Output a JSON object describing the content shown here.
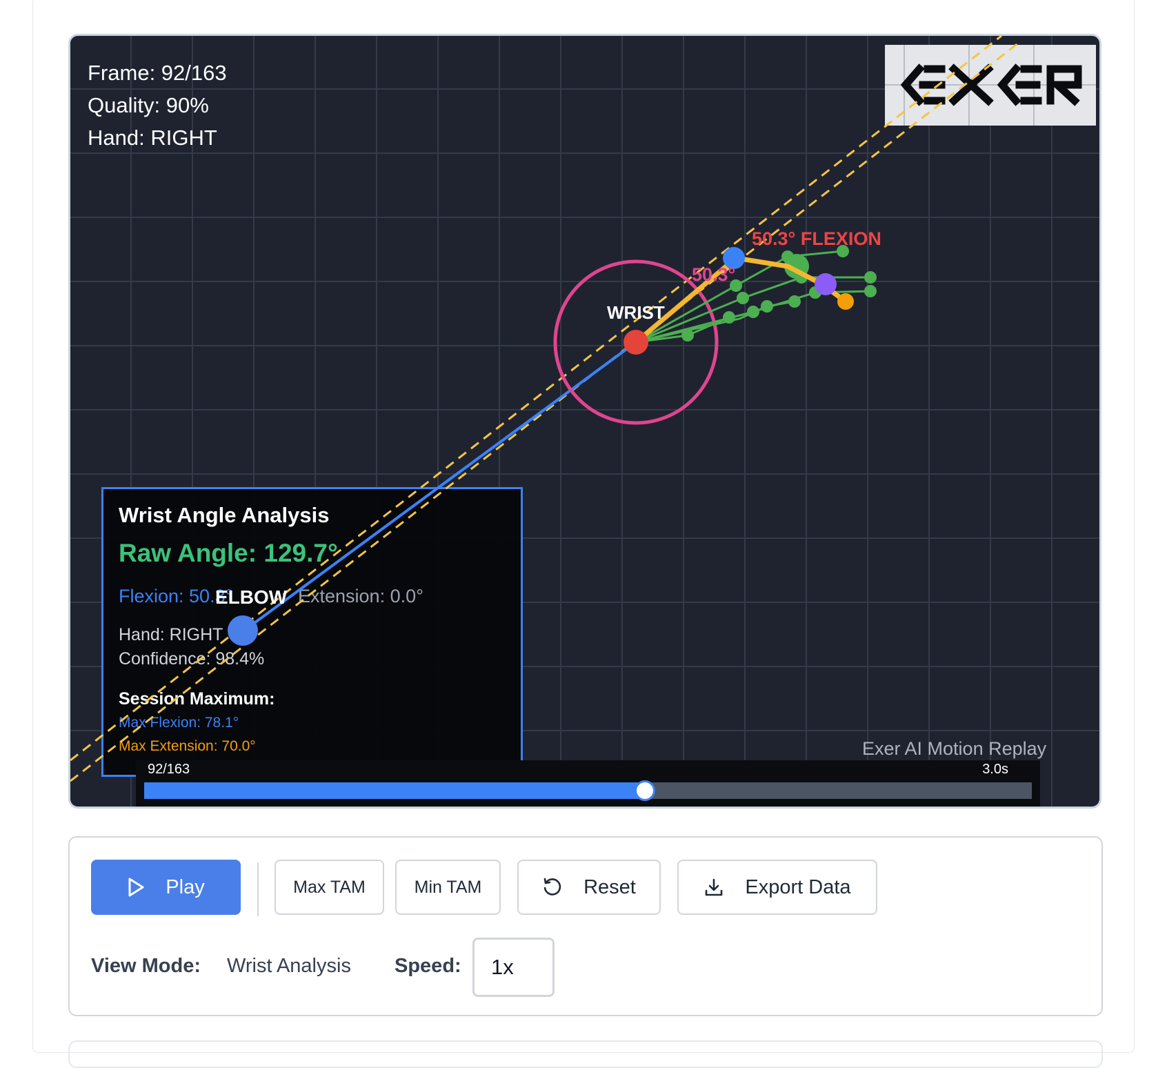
{
  "overlay": {
    "frame_text": "Frame: 92/163",
    "quality_text": "Quality: 90%",
    "hand_text": "Hand: RIGHT",
    "logo_text": "EXER"
  },
  "joints": {
    "wrist_label": "WRIST",
    "elbow_label": "ELBOW",
    "angle_small_label": "50.3°",
    "flexion_label": "50.3° FLEXION"
  },
  "analysis": {
    "title": "Wrist Angle Analysis",
    "raw_angle": "Raw Angle: 129.7°",
    "flexion": "Flexion: 50.3°",
    "extension": "Extension: 0.0°",
    "hand": "Hand: RIGHT",
    "confidence": "Confidence: 98.4%",
    "session_title": "Session Maximum:",
    "max_flexion": "Max Flexion: 78.1°",
    "max_extension": "Max Extension: 70.0°"
  },
  "replay_label": "Exer AI Motion Replay",
  "timeline": {
    "frame_label": "92/163",
    "time_label": "3.0s",
    "current_frame": 92,
    "total_frames": 163
  },
  "controls": {
    "play_label": "Play",
    "max_tam_label": "Max TAM",
    "min_tam_label": "Min TAM",
    "reset_label": "Reset",
    "export_label": "Export Data",
    "view_mode_label": "View Mode:",
    "view_mode_value": "Wrist Analysis",
    "speed_label": "Speed:",
    "speed_value": "1x"
  },
  "colors": {
    "accent": "#3b82f6",
    "play_button": "#4a7fe9",
    "wrist_ring": "#e0458f",
    "reference_line": "#f5c542",
    "finger": "#4caf50",
    "flexion_text": "#ef4444"
  }
}
